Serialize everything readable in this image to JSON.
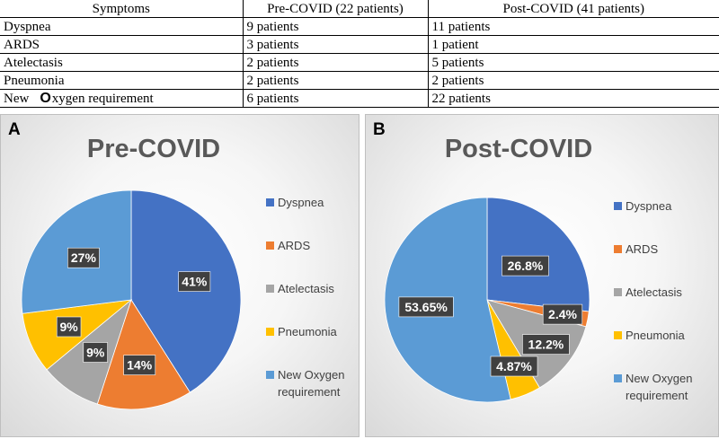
{
  "table": {
    "headers": [
      "Symptoms",
      "Pre-COVID (22 patients)",
      "Post-COVID (41 patients)"
    ],
    "rows": [
      [
        "Dyspnea",
        "9 patients",
        "11 patients"
      ],
      [
        "ARDS",
        "3 patients",
        "1 patient"
      ],
      [
        "Atelectasis",
        "2 patients",
        "5 patients"
      ],
      [
        "Pneumonia",
        "2 patients",
        "2 patients"
      ],
      [
        "New Oxygen requirement",
        "6 patients",
        "22 patients"
      ]
    ],
    "last_label_parts": [
      "New",
      "O",
      "xygen requirement"
    ]
  },
  "colors": {
    "Dyspnea": "#4472c4",
    "ARDS": "#ed7d31",
    "Atelectasis": "#a5a5a5",
    "Pneumonia": "#ffc000",
    "New Oxygen requirement": "#5b9bd5",
    "label_bg": "#404040",
    "label_text": "#ffffff",
    "title": "#595959"
  },
  "chart_data": [
    {
      "type": "pie",
      "panel_letter": "A",
      "title": "Pre-COVID",
      "categories": [
        "Dyspnea",
        "ARDS",
        "Atelectasis",
        "Pneumonia",
        "New Oxygen requirement"
      ],
      "values": [
        41,
        14,
        9,
        9,
        27
      ],
      "data_labels": [
        "41%",
        "14%",
        "9%",
        "9%",
        "27%"
      ],
      "legend": [
        "Dyspnea",
        "ARDS",
        "Atelectasis",
        "Pneumonia",
        "New Oxygen requirement"
      ],
      "legend_position": "right",
      "start_angle": "12 o'clock, clockwise"
    },
    {
      "type": "pie",
      "panel_letter": "B",
      "title": "Post-COVID",
      "categories": [
        "Dyspnea",
        "ARDS",
        "Atelectasis",
        "Pneumonia",
        "New Oxygen requirement"
      ],
      "values": [
        26.8,
        2.4,
        12.2,
        4.87,
        53.65
      ],
      "data_labels": [
        "26.8%",
        "2.4%",
        "12.2%",
        "4.87%",
        "53.65%"
      ],
      "legend": [
        "Dyspnea",
        "ARDS",
        "Atelectasis",
        "Pneumonia",
        "New Oxygen requirement"
      ],
      "legend_position": "right",
      "start_angle": "12 o'clock, clockwise"
    }
  ]
}
